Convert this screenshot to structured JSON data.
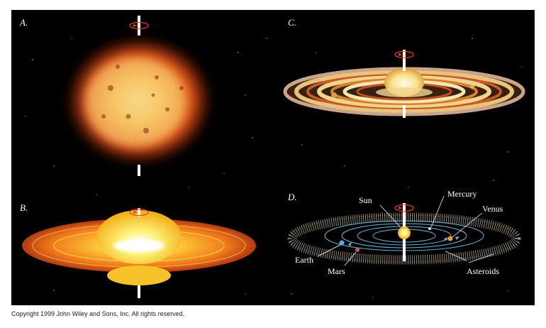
{
  "panels": {
    "a": {
      "letter": "A."
    },
    "b": {
      "letter": "B."
    },
    "c": {
      "letter": "C."
    },
    "d": {
      "letter": "D.",
      "labels": {
        "sun": "Sun",
        "mercury": "Mercury",
        "venus": "Venus",
        "earth": "Earth",
        "mars": "Mars",
        "asteroids": "Asteroids"
      }
    }
  },
  "footer": {
    "copyright": "Copyright 1999 John Wiley and Sons, Inc. All rights reserved."
  },
  "colors": {
    "background": "#000000",
    "orbit": "#6fb7d8",
    "axis": "#ffffff",
    "rotation_arrow": "#e8402a"
  }
}
